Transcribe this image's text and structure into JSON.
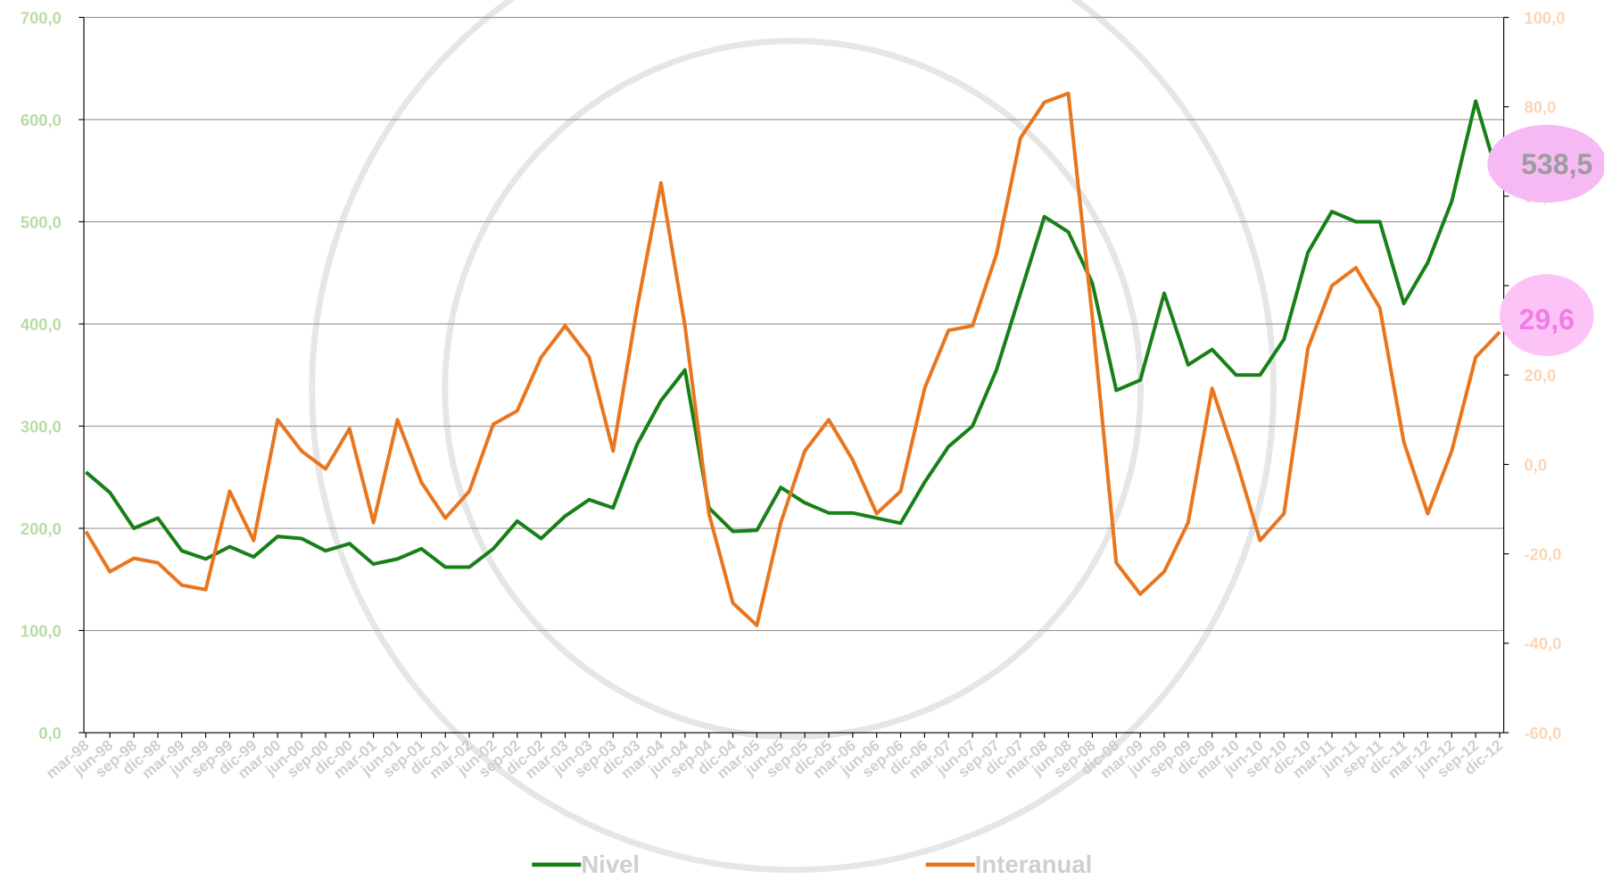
{
  "chart_data": {
    "type": "line",
    "categories": [
      "mar-98",
      "jun-98",
      "sep-98",
      "dic-98",
      "mar-99",
      "jun-99",
      "sep-99",
      "dic-99",
      "mar-00",
      "jun-00",
      "sep-00",
      "dic-00",
      "mar-01",
      "jun-01",
      "sep-01",
      "dic-01",
      "mar-02",
      "jun-02",
      "sep-02",
      "dic-02",
      "mar-03",
      "jun-03",
      "sep-03",
      "dic-03",
      "mar-04",
      "jun-04",
      "sep-04",
      "dic-04",
      "mar-05",
      "jun-05",
      "sep-05",
      "dic-05",
      "mar-06",
      "jun-06",
      "sep-06",
      "dic-06",
      "mar-07",
      "jun-07",
      "sep-07",
      "dic-07",
      "mar-08",
      "jun-08",
      "sep-08",
      "dic-08",
      "mar-09",
      "jun-09",
      "sep-09",
      "dic-09",
      "mar-10",
      "jun-10",
      "sep-10",
      "dic-10",
      "mar-11",
      "jun-11",
      "sep-11",
      "dic-11",
      "mar-12",
      "jun-12",
      "sep-12",
      "dic-12"
    ],
    "series": [
      {
        "name": "Nivel",
        "color": "#178017",
        "axis": "y",
        "values": [
          255,
          235,
          200,
          210,
          178,
          170,
          182,
          172,
          192,
          190,
          178,
          185,
          165,
          170,
          180,
          162,
          162,
          180,
          207,
          190,
          212,
          228,
          220,
          282,
          325,
          355,
          220,
          197,
          198,
          240,
          225,
          215,
          215,
          210,
          205,
          245,
          280,
          300,
          355,
          430,
          505,
          490,
          440,
          335,
          345,
          430,
          360,
          375,
          350,
          350,
          385,
          470,
          510,
          500,
          500,
          420,
          460,
          520,
          618,
          538.5
        ]
      },
      {
        "name": "Interanual",
        "color": "#e8761f",
        "axis": "y2",
        "values": [
          -15,
          -24,
          -21,
          -22,
          -27,
          -28,
          -6,
          -17,
          10,
          3,
          -1,
          8,
          -13,
          10,
          -4,
          -12,
          -6,
          9,
          12,
          24,
          31,
          24,
          3,
          35,
          63,
          31,
          -11,
          -31,
          -36,
          -13,
          3,
          10,
          1,
          -11,
          -6,
          17,
          30,
          31,
          47,
          73,
          81,
          83,
          33,
          -22,
          -29,
          -24,
          -13,
          17,
          1,
          -17,
          -11,
          26,
          40,
          44,
          35,
          5,
          -11,
          3,
          24,
          29.6
        ]
      }
    ],
    "ylim": [
      0,
      700
    ],
    "yticks": [
      {
        "value": 0,
        "label": "0,0"
      },
      {
        "value": 100,
        "label": "100,0"
      },
      {
        "value": 200,
        "label": "200,0"
      },
      {
        "value": 300,
        "label": "300,0"
      },
      {
        "value": 400,
        "label": "400,0"
      },
      {
        "value": 500,
        "label": "500,0"
      },
      {
        "value": 600,
        "label": "600,0"
      },
      {
        "value": 700,
        "label": "700,0"
      }
    ],
    "y2lim": [
      -60,
      100
    ],
    "y2ticks": [
      {
        "value": -60,
        "label": "-60,0"
      },
      {
        "value": -40,
        "label": "-40,0"
      },
      {
        "value": -20,
        "label": "-20,0"
      },
      {
        "value": 0,
        "label": "0,0"
      },
      {
        "value": 20,
        "label": "20,0"
      },
      {
        "value": 40,
        "label": "40,0"
      },
      {
        "value": 60,
        "label": "60,0"
      },
      {
        "value": 80,
        "label": "80,0"
      },
      {
        "value": 100,
        "label": "100,0"
      }
    ],
    "annotations": [
      "538,5",
      "29,6"
    ],
    "grid": true
  }
}
